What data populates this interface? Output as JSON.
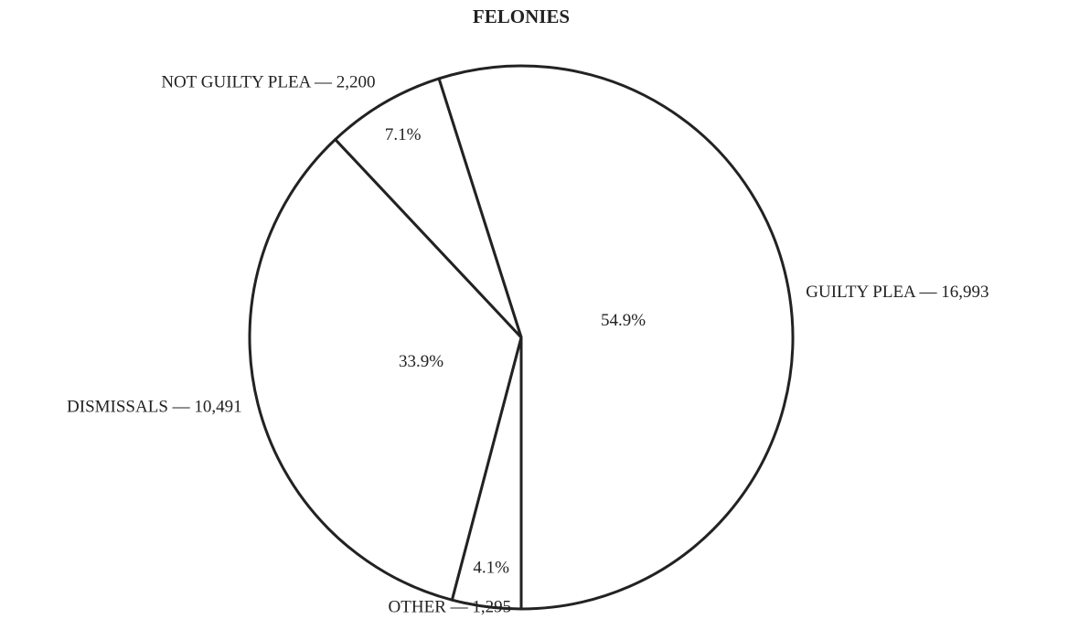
{
  "chart_data": {
    "type": "pie",
    "title": "FELONIES",
    "categories": [
      "GUILTY PLEA — 16,993",
      "OTHER — 1,295",
      "DISMISSALS — 10,491",
      "NOT GUILTY PLEA — 2,200"
    ],
    "values": [
      54.9,
      4.1,
      33.9,
      7.1
    ],
    "value_labels": [
      "54.9%",
      "4.1%",
      "33.9%",
      "7.1%"
    ],
    "color": "#ffffff"
  }
}
